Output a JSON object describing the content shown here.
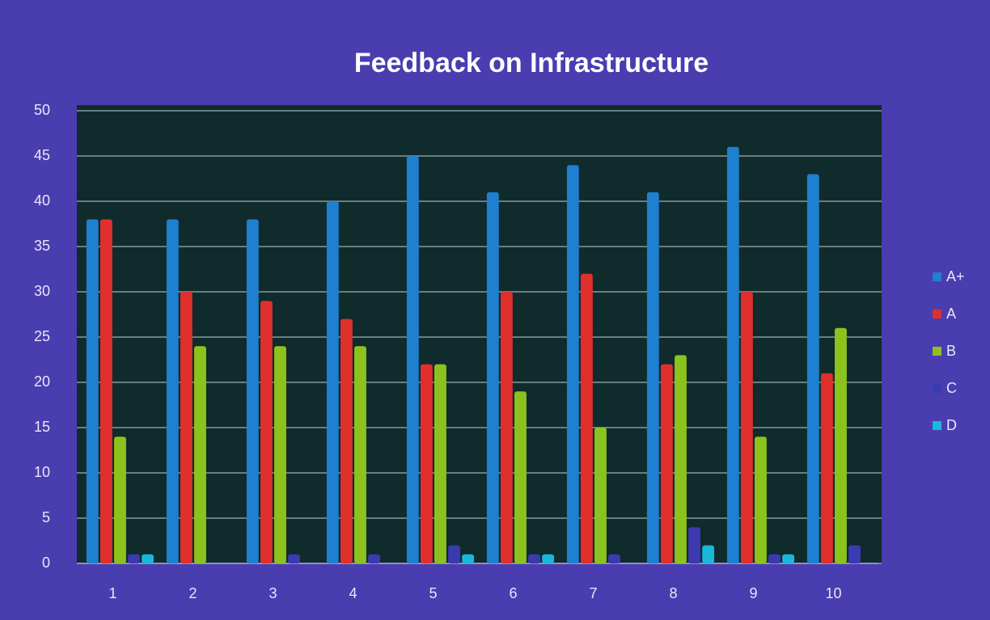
{
  "chart_data": {
    "type": "bar",
    "title": "Feedback on Infrastructure",
    "categories": [
      "1",
      "2",
      "3",
      "4",
      "5",
      "6",
      "7",
      "8",
      "9",
      "10"
    ],
    "series": [
      {
        "name": "A+",
        "color": "#1f7fd0",
        "values": [
          38,
          38,
          38,
          40,
          45,
          41,
          44,
          41,
          46,
          43
        ]
      },
      {
        "name": "A",
        "color": "#e0302e",
        "values": [
          38,
          30,
          29,
          27,
          22,
          30,
          32,
          22,
          30,
          21
        ]
      },
      {
        "name": "B",
        "color": "#8cc21e",
        "values": [
          14,
          24,
          24,
          24,
          22,
          19,
          15,
          23,
          14,
          26
        ]
      },
      {
        "name": "C",
        "color": "#3b3ab0",
        "values": [
          1,
          0,
          1,
          1,
          2,
          1,
          1,
          4,
          1,
          2
        ]
      },
      {
        "name": "D",
        "color": "#18b8d8",
        "values": [
          1,
          0,
          0,
          0,
          1,
          1,
          0,
          2,
          1,
          0
        ]
      }
    ],
    "ylim": [
      0,
      50
    ],
    "yticks": [
      0,
      5,
      10,
      15,
      20,
      25,
      30,
      35,
      40,
      45,
      50
    ],
    "grid": true,
    "legend": "right"
  }
}
